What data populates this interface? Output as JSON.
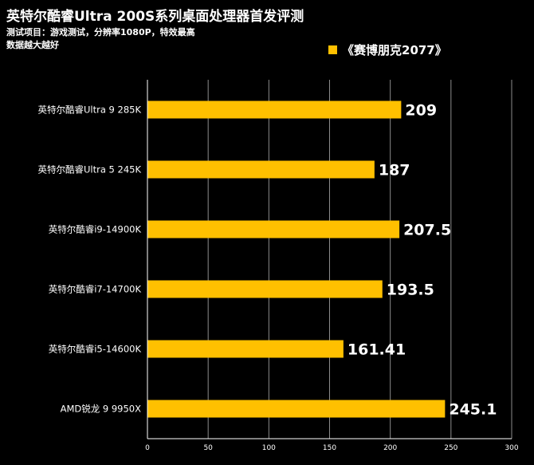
{
  "colors": {
    "background": "#000000",
    "bar": "#ffc000",
    "text": "#ffffff",
    "axis": "#ffffff"
  },
  "chart_data": {
    "type": "bar",
    "orientation": "horizontal",
    "title": "英特尔酷睿Ultra 200S系列桌面处理器首发评测",
    "subtitle_lines": [
      "测试项目：游戏测试，分辨率1080P，特效最高",
      "数据越大越好"
    ],
    "legend_position": "top-right",
    "categories": [
      "英特尔酷睿Ultra 9 285K",
      "英特尔酷睿Ultra 5 245K",
      "英特尔酷睿i9-14900K",
      "英特尔酷睿i7-14700K",
      "英特尔酷睿i5-14600K",
      "AMD锐龙 9 9950X"
    ],
    "series": [
      {
        "name": "《赛博朋克2077》",
        "values": [
          209,
          187,
          207.5,
          193.5,
          161.41,
          245.1
        ],
        "labels": [
          "209",
          "187",
          "207.5",
          "193.5",
          "161.41",
          "245.1"
        ]
      }
    ],
    "xlim": [
      0,
      300
    ],
    "xticks": [
      0,
      50,
      100,
      150,
      200,
      250,
      300
    ],
    "grid": true
  }
}
